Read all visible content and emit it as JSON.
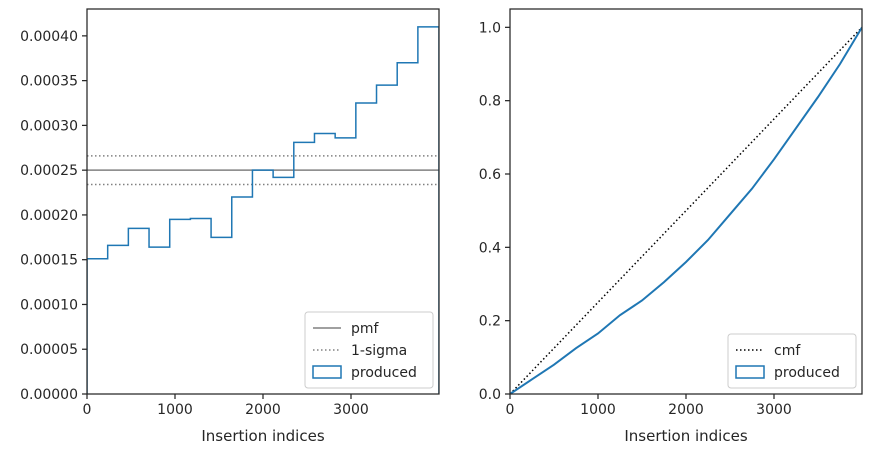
{
  "chart_data": [
    {
      "type": "histogram",
      "xlabel": "Insertion indices",
      "ylabel": "",
      "xlim": [
        0,
        4000
      ],
      "ylim": [
        0,
        0.00043
      ],
      "xticks": [
        0,
        1000,
        2000,
        3000
      ],
      "xtick_labels": [
        "0",
        "1000",
        "2000",
        "3000"
      ],
      "yticks": [
        0,
        5e-05,
        0.0001,
        0.00015,
        0.0002,
        0.00025,
        0.0003,
        0.00035,
        0.0004
      ],
      "ytick_labels": [
        "0.00000",
        "0.00005",
        "0.00010",
        "0.00015",
        "0.00020",
        "0.00025",
        "0.00030",
        "0.00035",
        "0.00040"
      ],
      "grid": false,
      "legend_position": "lower-right",
      "hlines": [
        {
          "name": "pmf",
          "y": 0.00025,
          "style": "solid",
          "color": "#808080"
        },
        {
          "name": "1-sigma",
          "y": 0.000266,
          "style": "dotted",
          "color": "#808080"
        },
        {
          "name": "1-sigma",
          "y": 0.000234,
          "style": "dotted",
          "color": "#808080"
        }
      ],
      "series": [
        {
          "name": "produced",
          "color": "#1f77b4",
          "bin_edges": [
            0,
            235,
            470,
            705,
            940,
            1175,
            1410,
            1645,
            1880,
            2115,
            2350,
            2585,
            2820,
            3055,
            3290,
            3525,
            3760,
            4000
          ],
          "values": [
            0.000151,
            0.000166,
            0.000185,
            0.000164,
            0.000195,
            0.000196,
            0.000175,
            0.00022,
            0.00025,
            0.000242,
            0.000281,
            0.000291,
            0.000286,
            0.000325,
            0.000345,
            0.00037,
            0.00041
          ]
        }
      ],
      "legend": [
        {
          "label": "pmf",
          "kind": "solid"
        },
        {
          "label": "1-sigma",
          "kind": "dotted"
        },
        {
          "label": "produced",
          "kind": "patch"
        }
      ]
    },
    {
      "type": "line",
      "xlabel": "Insertion indices",
      "ylabel": "",
      "xlim": [
        0,
        4000
      ],
      "ylim": [
        0,
        1.05
      ],
      "xticks": [
        0,
        1000,
        2000,
        3000
      ],
      "xtick_labels": [
        "0",
        "1000",
        "2000",
        "3000"
      ],
      "yticks": [
        0,
        0.2,
        0.4,
        0.6,
        0.8,
        1.0
      ],
      "ytick_labels": [
        "0.0",
        "0.2",
        "0.4",
        "0.6",
        "0.8",
        "1.0"
      ],
      "grid": false,
      "legend_position": "lower-right",
      "series": [
        {
          "name": "cmf",
          "style": "dotted",
          "color": "#000000",
          "x": [
            0,
            4000
          ],
          "y": [
            0,
            1.0
          ]
        },
        {
          "name": "produced",
          "style": "solid",
          "color": "#1f77b4",
          "x": [
            0,
            250,
            500,
            750,
            1000,
            1250,
            1500,
            1750,
            2000,
            2250,
            2500,
            2750,
            3000,
            3250,
            3500,
            3750,
            4000
          ],
          "y": [
            0,
            0.04,
            0.08,
            0.125,
            0.165,
            0.215,
            0.255,
            0.305,
            0.36,
            0.42,
            0.49,
            0.56,
            0.64,
            0.725,
            0.81,
            0.9,
            1.0
          ]
        }
      ],
      "legend": [
        {
          "label": "cmf",
          "kind": "dotted"
        },
        {
          "label": "produced",
          "kind": "patch"
        }
      ]
    }
  ]
}
